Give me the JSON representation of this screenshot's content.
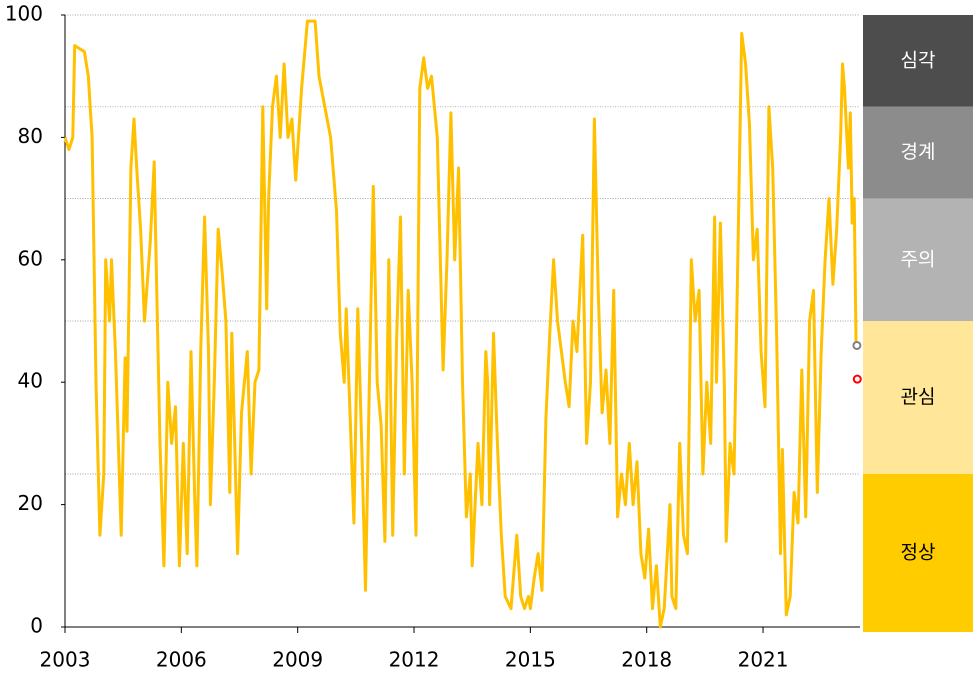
{
  "chart_data": {
    "type": "line",
    "xlim": [
      2003,
      2023.5
    ],
    "xticks": [
      2003,
      2006,
      2009,
      2012,
      2015,
      2018,
      2021
    ],
    "ylim": [
      0,
      100
    ],
    "yticks": [
      0,
      20,
      40,
      60,
      80,
      100
    ],
    "x": [
      2003.0,
      2003.1,
      2003.2,
      2003.25,
      2003.5,
      2003.6,
      2003.7,
      2003.8,
      2003.9,
      2004.0,
      2004.05,
      2004.15,
      2004.2,
      2004.3,
      2004.35,
      2004.45,
      2004.55,
      2004.6,
      2004.7,
      2004.78,
      2004.85,
      2004.95,
      2005.05,
      2005.2,
      2005.3,
      2005.35,
      2005.45,
      2005.55,
      2005.65,
      2005.75,
      2005.85,
      2005.95,
      2006.05,
      2006.15,
      2006.25,
      2006.35,
      2006.4,
      2006.5,
      2006.6,
      2006.7,
      2006.75,
      2006.85,
      2006.95,
      2007.05,
      2007.15,
      2007.25,
      2007.3,
      2007.45,
      2007.55,
      2007.7,
      2007.8,
      2007.9,
      2008.0,
      2008.1,
      2008.2,
      2008.25,
      2008.35,
      2008.45,
      2008.55,
      2008.65,
      2008.75,
      2008.85,
      2008.95,
      2009.1,
      2009.25,
      2009.45,
      2009.55,
      2009.7,
      2009.85,
      2010.0,
      2010.1,
      2010.2,
      2010.25,
      2010.35,
      2010.45,
      2010.55,
      2010.65,
      2010.75,
      2010.85,
      2010.95,
      2011.05,
      2011.15,
      2011.25,
      2011.35,
      2011.45,
      2011.55,
      2011.65,
      2011.75,
      2011.85,
      2011.95,
      2012.05,
      2012.15,
      2012.25,
      2012.35,
      2012.45,
      2012.6,
      2012.75,
      2012.85,
      2012.95,
      2013.05,
      2013.15,
      2013.25,
      2013.35,
      2013.45,
      2013.5,
      2013.65,
      2013.75,
      2013.85,
      2013.9,
      2013.95,
      2014.05,
      2014.15,
      2014.25,
      2014.35,
      2014.5,
      2014.65,
      2014.75,
      2014.85,
      2014.95,
      2015.0,
      2015.1,
      2015.2,
      2015.3,
      2015.4,
      2015.5,
      2015.6,
      2015.7,
      2015.8,
      2015.9,
      2016.0,
      2016.1,
      2016.2,
      2016.35,
      2016.45,
      2016.55,
      2016.65,
      2016.75,
      2016.85,
      2016.95,
      2017.05,
      2017.15,
      2017.25,
      2017.35,
      2017.45,
      2017.55,
      2017.65,
      2017.75,
      2017.85,
      2017.95,
      2018.05,
      2018.15,
      2018.25,
      2018.35,
      2018.45,
      2018.55,
      2018.6,
      2018.65,
      2018.75,
      2018.85,
      2018.95,
      2019.05,
      2019.15,
      2019.25,
      2019.35,
      2019.45,
      2019.55,
      2019.65,
      2019.75,
      2019.8,
      2019.9,
      2020.0,
      2020.05,
      2020.15,
      2020.25,
      2020.35,
      2020.45,
      2020.55,
      2020.65,
      2020.75,
      2020.85,
      2020.95,
      2021.05,
      2021.15,
      2021.25,
      2021.35,
      2021.45,
      2021.5,
      2021.6,
      2021.7,
      2021.8,
      2021.9,
      2022.0,
      2022.1,
      2022.2,
      2022.3,
      2022.4,
      2022.5,
      2022.6,
      2022.7,
      2022.8,
      2022.9,
      2023.0,
      2023.05,
      2023.1,
      2023.2,
      2023.25,
      2023.3,
      2023.35,
      2023.4
    ],
    "series": [
      {
        "color": "#ffc000",
        "values": [
          80,
          78,
          80,
          95,
          94,
          90,
          80,
          40,
          15,
          25,
          60,
          50,
          60,
          45,
          35,
          15,
          44,
          32,
          75,
          83,
          75,
          65,
          50,
          63,
          76,
          60,
          30,
          10,
          40,
          30,
          36,
          10,
          30,
          12,
          45,
          20,
          10,
          45,
          67,
          45,
          20,
          40,
          65,
          58,
          50,
          22,
          48,
          12,
          35,
          45,
          25,
          40,
          42,
          85,
          52,
          70,
          85,
          90,
          80,
          92,
          80,
          83,
          73,
          88,
          99,
          99,
          90,
          85,
          80,
          68,
          48,
          40,
          52,
          35,
          17,
          52,
          30,
          6,
          40,
          72,
          40,
          33,
          14,
          60,
          15,
          47,
          67,
          25,
          55,
          40,
          15,
          88,
          93,
          88,
          90,
          80,
          42,
          60,
          84,
          60,
          75,
          40,
          18,
          25,
          10,
          30,
          20,
          45,
          40,
          20,
          48,
          30,
          15,
          5,
          3,
          15,
          5,
          3,
          5,
          3,
          8,
          12,
          6,
          34,
          48,
          60,
          50,
          45,
          40,
          36,
          50,
          45,
          64,
          30,
          40,
          83,
          55,
          35,
          42,
          30,
          55,
          18,
          25,
          20,
          30,
          20,
          27,
          12,
          8,
          16,
          3,
          10,
          0,
          3,
          14,
          20,
          5,
          3,
          30,
          15,
          12,
          60,
          50,
          55,
          25,
          40,
          30,
          67,
          40,
          66,
          40,
          14,
          30,
          25,
          60,
          97,
          92,
          82,
          60,
          65,
          45,
          36,
          85,
          75,
          48,
          12,
          29,
          2,
          5,
          22,
          17,
          42,
          18,
          50,
          55,
          22,
          45,
          60,
          70,
          56,
          65,
          80,
          92,
          88,
          75,
          84,
          66,
          70,
          46
        ]
      }
    ],
    "markers": [
      {
        "x": 2023.42,
        "value": 46,
        "color": "#808080"
      },
      {
        "x": 2023.43,
        "value": 40.5,
        "color": "#ff0000"
      }
    ],
    "bands": [
      {
        "label": "심각",
        "from": 85,
        "to": 100,
        "color": "#4d4d4d"
      },
      {
        "label": "경계",
        "from": 70,
        "to": 85,
        "color": "#8c8c8c"
      },
      {
        "label": "주의",
        "from": 50,
        "to": 70,
        "color": "#b3b3b3"
      },
      {
        "label": "관심",
        "from": 25,
        "to": 50,
        "color": "#ffe699"
      },
      {
        "label": "정상",
        "from": 0,
        "to": 25,
        "color": "#ffcc00"
      }
    ]
  }
}
